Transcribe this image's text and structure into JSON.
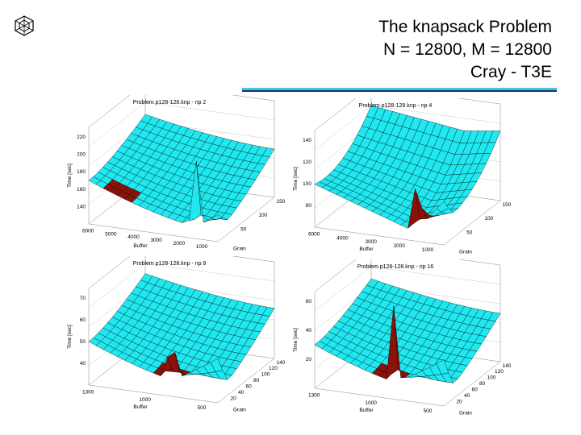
{
  "slide": {
    "title_lines": [
      "The knapsack Problem",
      "N = 12800, M = 12800",
      "Cray - T3E"
    ],
    "accent_color": "#3cc8d8",
    "rule_color": "#1f2a7a",
    "logo_icon": "cube-logo-icon"
  },
  "panels": [
    {
      "title": "Problem p128-128.knp - np 2",
      "zlabel": "Time [sec]",
      "xlabel": "Buffer",
      "ylabel": "Grain",
      "zticks": [
        "220",
        "200",
        "180",
        "160",
        "140"
      ],
      "xticks": [
        "6000",
        "5000",
        "4000",
        "3000",
        "2000",
        "1000"
      ],
      "yticks": [
        "150",
        "100",
        "50"
      ]
    },
    {
      "title": "Problem p128-128.knp - np 4",
      "zlabel": "Time [sec]",
      "xlabel": "Buffer",
      "ylabel": "Grain",
      "zticks": [
        "140",
        "120",
        "100",
        "80"
      ],
      "xticks": [
        "6000",
        "4000",
        "3000",
        "2000",
        "1000"
      ],
      "yticks": [
        "150",
        "100",
        "50"
      ]
    },
    {
      "title": "Problem p128-128.knp - np 8",
      "zlabel": "Time [sec]",
      "xlabel": "Buffer",
      "ylabel": "Grain",
      "zticks": [
        "70",
        "60",
        "50",
        "40"
      ],
      "xticks": [
        "1300",
        "1000",
        "500"
      ],
      "yticks": [
        "140",
        "120",
        "100",
        "80",
        "60",
        "40",
        "20"
      ]
    },
    {
      "title": "Problem p128-128.knp - np 16",
      "zlabel": "Time [sec]",
      "xlabel": "Buffer",
      "ylabel": "Grain",
      "zticks": [
        "60",
        "40",
        "20"
      ],
      "xticks": [
        "1300",
        "1000",
        "500"
      ],
      "yticks": [
        "140",
        "120",
        "100",
        "80",
        "60",
        "40",
        "20"
      ]
    }
  ],
  "surface_color": "#20e8f0",
  "minimum_color": "#8b1208"
}
